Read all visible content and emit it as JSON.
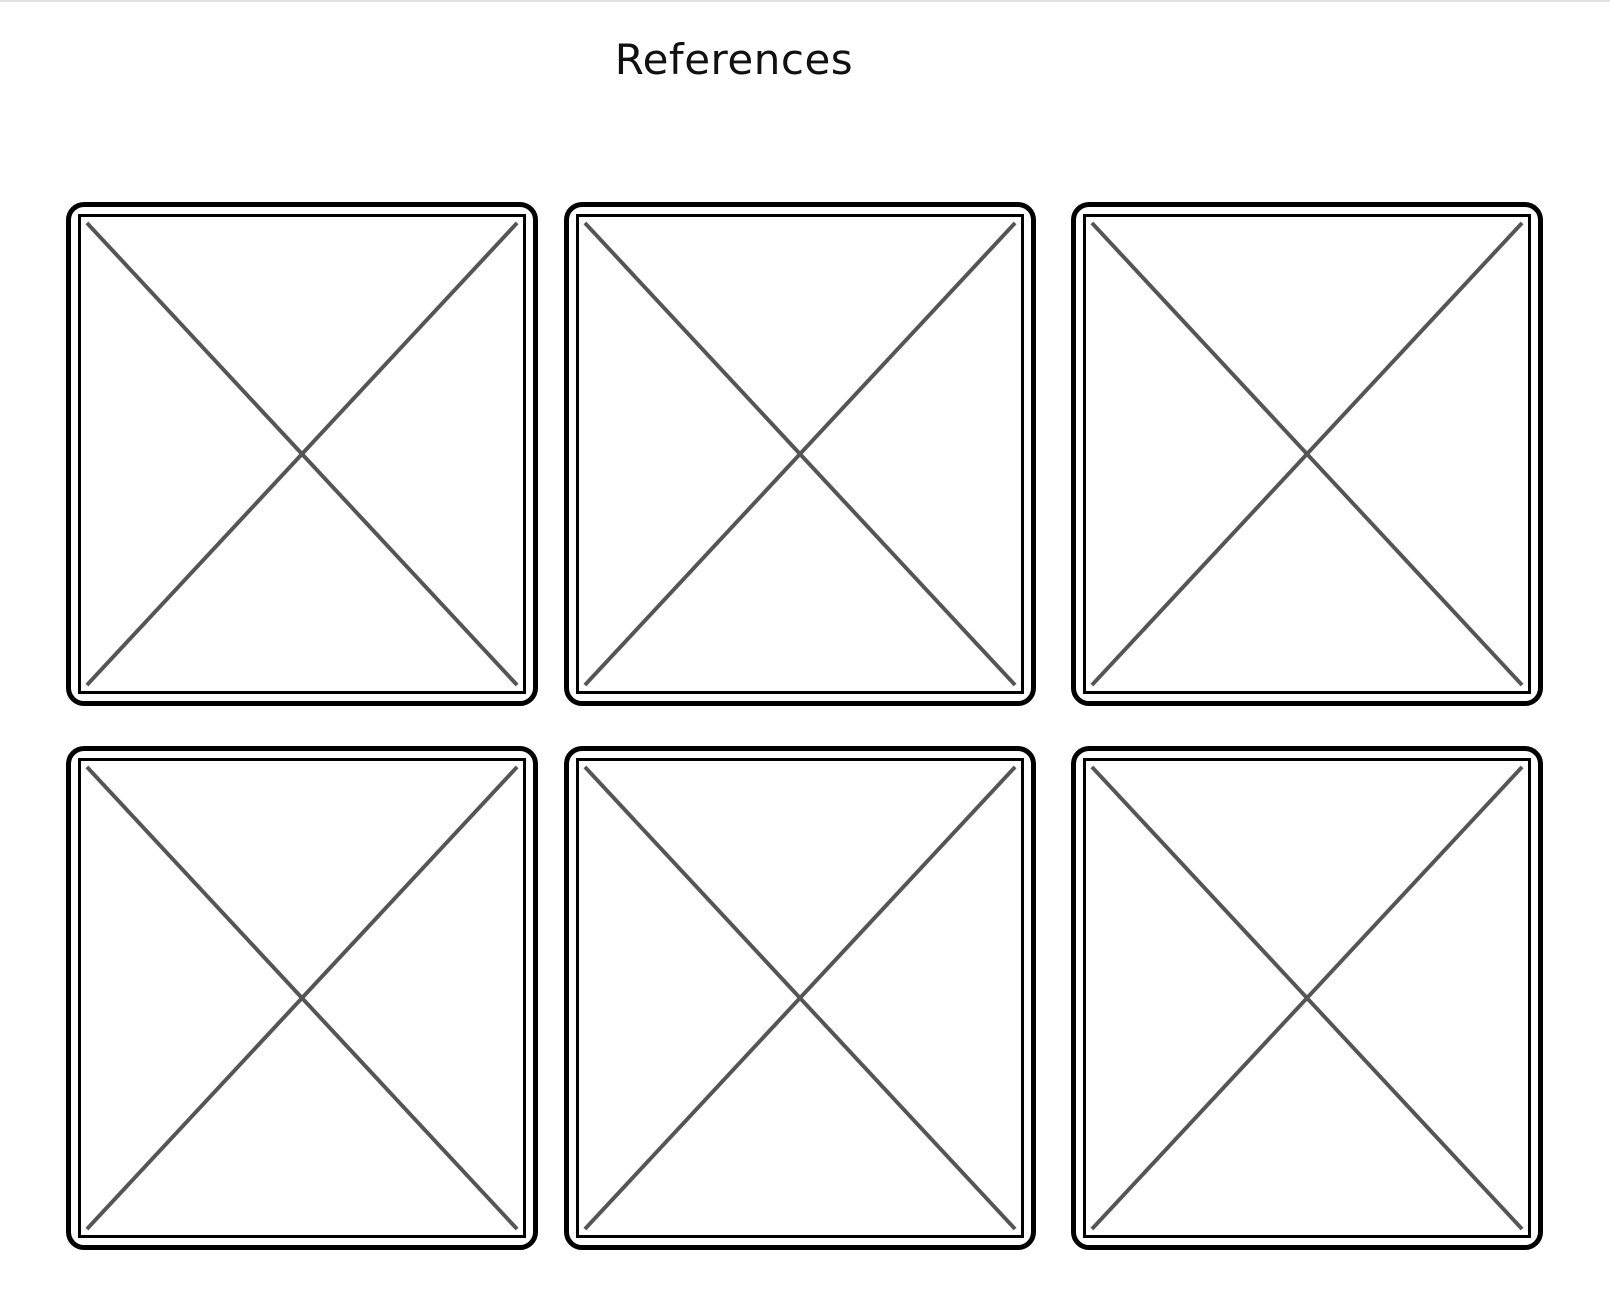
{
  "page": {
    "title": "References"
  },
  "references": {
    "items": [
      {
        "type": "image-placeholder",
        "icon": "image-placeholder-icon"
      },
      {
        "type": "image-placeholder",
        "icon": "image-placeholder-icon"
      },
      {
        "type": "image-placeholder",
        "icon": "image-placeholder-icon"
      },
      {
        "type": "image-placeholder",
        "icon": "image-placeholder-icon"
      },
      {
        "type": "image-placeholder",
        "icon": "image-placeholder-icon"
      },
      {
        "type": "image-placeholder",
        "icon": "image-placeholder-icon"
      }
    ]
  },
  "colors": {
    "border": "#000000",
    "cross": "#555555",
    "background": "#ffffff"
  }
}
